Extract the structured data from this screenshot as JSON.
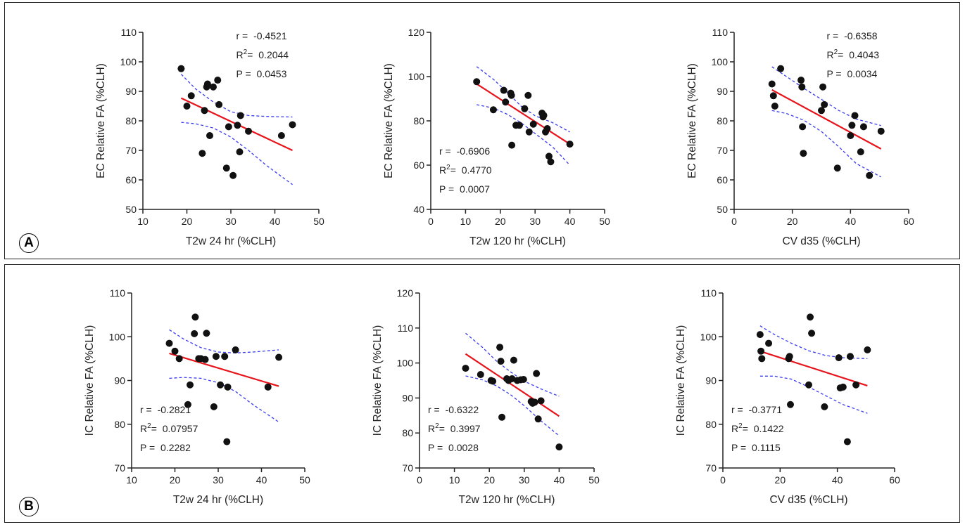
{
  "panels": [
    {
      "label": "A"
    },
    {
      "label": "B"
    }
  ],
  "colors": {
    "points": "#111111",
    "regression": "#e8141c",
    "ci": "#3a3cf0",
    "axis": "#222222"
  },
  "chart_data": [
    {
      "type": "scatter",
      "panel": "A",
      "xlabel": "T2w 24 hr (%CLH)",
      "ylabel": "EC Relative FA (%CLH)",
      "xlim": [
        10,
        50
      ],
      "ylim": [
        50,
        110
      ],
      "xticks": [
        "10",
        "20",
        "30",
        "40",
        "50"
      ],
      "yticks": [
        "50",
        "60",
        "70",
        "80",
        "90",
        "100",
        "110"
      ],
      "stats": {
        "r": "-0.4521",
        "r2": "0.2044",
        "p": "0.0453"
      },
      "stats_position": "top-right",
      "x": [
        18.7,
        20,
        21,
        23.5,
        24,
        24.5,
        24.7,
        25.2,
        26,
        27,
        27.3,
        29,
        29.5,
        30.5,
        31.5,
        32,
        32.2,
        34,
        41.5,
        44
      ],
      "y": [
        97.7,
        85,
        88.5,
        69,
        83.5,
        91.5,
        92.5,
        75,
        91.5,
        93.8,
        85.5,
        64,
        78,
        61.5,
        78.5,
        69.5,
        81.8,
        76.5,
        75,
        78.7
      ],
      "regression": {
        "x": [
          18.7,
          44
        ],
        "y": [
          87.7,
          70
        ]
      },
      "ci_upper": {
        "x": [
          18.7,
          22,
          26,
          30,
          34,
          38,
          44
        ],
        "y": [
          95.8,
          90.8,
          86.4,
          83.1,
          81.8,
          81.5,
          81.3
        ]
      },
      "ci_lower": {
        "x": [
          18.7,
          22,
          26,
          30,
          34,
          38,
          44
        ],
        "y": [
          79.5,
          79,
          77.6,
          74.5,
          70,
          65,
          58.4
        ]
      }
    },
    {
      "type": "scatter",
      "panel": "A",
      "xlabel": "T2w 120 hr (%CLH)",
      "ylabel": "EC Relative FA (%CLH)",
      "xlim": [
        0,
        50
      ],
      "ylim": [
        40,
        120
      ],
      "xticks": [
        "0",
        "10",
        "20",
        "30",
        "40",
        "50"
      ],
      "yticks": [
        "40",
        "60",
        "80",
        "100",
        "120"
      ],
      "stats": {
        "r": "-0.6906",
        "r2": "0.4770",
        "p": "0.0007"
      },
      "stats_position": "bottom-left",
      "x": [
        13.2,
        18,
        21,
        21.5,
        23,
        23.2,
        23.3,
        24.5,
        25.5,
        27,
        28,
        28.3,
        29.5,
        32,
        32.3,
        32.5,
        33,
        33.5,
        34,
        34.5,
        40
      ],
      "y": [
        97.7,
        85,
        93.8,
        88.5,
        92.5,
        91.5,
        69,
        78,
        78,
        85.5,
        91.5,
        75,
        78.5,
        83.5,
        81.8,
        82.5,
        75,
        76.5,
        64,
        61.5,
        69.5
      ],
      "regression": {
        "x": [
          13.2,
          40
        ],
        "y": [
          96.7,
          69.5
        ]
      },
      "ci_upper": {
        "x": [
          13.2,
          18,
          22,
          26,
          30,
          35,
          40
        ],
        "y": [
          104.5,
          98.8,
          92.9,
          86.6,
          82.3,
          79.2,
          75
        ]
      },
      "ci_lower": {
        "x": [
          13.2,
          18,
          22,
          26,
          30,
          35,
          40
        ],
        "y": [
          87.3,
          85.8,
          83,
          79.1,
          74.3,
          68.3,
          60
        ]
      }
    },
    {
      "type": "scatter",
      "panel": "A",
      "xlabel": "CV d35 (%CLH)",
      "ylabel": "EC Relative FA (%CLH)",
      "xlim": [
        0,
        60
      ],
      "ylim": [
        50,
        110
      ],
      "xticks": [
        "0",
        "20",
        "40",
        "60"
      ],
      "yticks": [
        "50",
        "60",
        "70",
        "80",
        "90",
        "100",
        "110"
      ],
      "stats": {
        "r": "-0.6358",
        "r2": "0.4043",
        "p": "0.0034"
      },
      "stats_position": "top-right",
      "x": [
        13,
        13.5,
        14,
        16,
        23,
        23.3,
        23.5,
        23.8,
        30,
        30.5,
        31,
        35.5,
        40,
        40.5,
        41.5,
        43.5,
        44.5,
        46.5,
        50.5
      ],
      "y": [
        92.5,
        88.5,
        85,
        97.7,
        93.8,
        91.5,
        78,
        69,
        83.5,
        91.5,
        85.5,
        64,
        75,
        78.5,
        81.8,
        69.5,
        78,
        61.5,
        76.5
      ],
      "regression": {
        "x": [
          13,
          50.5
        ],
        "y": [
          90.5,
          70.5
        ]
      },
      "ci_upper": {
        "x": [
          13,
          18,
          24,
          30,
          36,
          42,
          50.5
        ],
        "y": [
          98.3,
          95,
          91,
          87.3,
          83.5,
          80.6,
          78.4
        ]
      },
      "ci_lower": {
        "x": [
          13,
          18,
          24,
          30,
          36,
          42,
          50.5
        ],
        "y": [
          83.5,
          82.5,
          80.2,
          76.4,
          71.2,
          65.5,
          61
        ]
      }
    },
    {
      "type": "scatter",
      "panel": "B",
      "xlabel": "T2w 24 hr (%CLH)",
      "ylabel": "IC Relative FA (%CLH)",
      "xlim": [
        10,
        50
      ],
      "ylim": [
        70,
        110
      ],
      "xticks": [
        "10",
        "20",
        "30",
        "40",
        "50"
      ],
      "yticks": [
        "70",
        "80",
        "90",
        "100",
        "110"
      ],
      "stats": {
        "r": "-0.2821",
        "r2": "0.07957",
        "p": "0.2282"
      },
      "stats_position": "bottom-left",
      "x": [
        18.7,
        20,
        21,
        23,
        23.5,
        24.5,
        24.7,
        25.5,
        26,
        27,
        27.3,
        29,
        29.5,
        30.5,
        31.5,
        32,
        32.2,
        34,
        41.5,
        44
      ],
      "y": [
        98.5,
        96.7,
        95,
        84.5,
        89,
        100.7,
        104.5,
        95,
        95,
        94.8,
        100.8,
        84,
        95.5,
        89,
        95.5,
        76,
        88.5,
        97,
        88.5,
        95.3
      ],
      "regression": {
        "x": [
          18.7,
          44
        ],
        "y": [
          96.2,
          88.7
        ]
      },
      "ci_upper": {
        "x": [
          18.7,
          22,
          26,
          30,
          34,
          38,
          44
        ],
        "y": [
          101.6,
          99.5,
          97.5,
          96.5,
          96.3,
          96.5,
          97
        ]
      },
      "ci_lower": {
        "x": [
          18.7,
          22,
          26,
          30,
          34,
          38,
          44
        ],
        "y": [
          90.5,
          90.7,
          90.5,
          89.5,
          87.5,
          84.5,
          80.5
        ]
      }
    },
    {
      "type": "scatter",
      "panel": "B",
      "xlabel": "T2w 120 hr (%CLH)",
      "ylabel": "IC Relative FA (%CLH)",
      "xlim": [
        0,
        50
      ],
      "ylim": [
        70,
        120
      ],
      "xticks": [
        "0",
        "10",
        "20",
        "30",
        "40",
        "50"
      ],
      "yticks": [
        "70",
        "80",
        "90",
        "100",
        "110",
        "120"
      ],
      "stats": {
        "r": "-0.6322",
        "r2": "0.3997",
        "p": "0.0028"
      },
      "stats_position": "bottom-left",
      "x": [
        13.2,
        17.5,
        20.5,
        21,
        23,
        23.3,
        23.6,
        25,
        25.5,
        26.5,
        27,
        28,
        29,
        29.8,
        32,
        32.4,
        33,
        33.5,
        34,
        34.8,
        40
      ],
      "y": [
        98.5,
        96.7,
        95,
        94.8,
        104.5,
        100.5,
        84.5,
        95.5,
        95,
        95.5,
        100.8,
        95,
        95.2,
        95.3,
        89,
        88.5,
        88.8,
        97,
        84,
        89.2,
        76
      ],
      "regression": {
        "x": [
          13.2,
          40
        ],
        "y": [
          102.6,
          84.8
        ]
      },
      "ci_upper": {
        "x": [
          13.2,
          18,
          22,
          26,
          30,
          35,
          40
        ],
        "y": [
          108.5,
          104.5,
          100.6,
          97.5,
          94.8,
          92.5,
          90.5
        ]
      },
      "ci_lower": {
        "x": [
          13.2,
          18,
          22,
          26,
          30,
          35,
          40
        ],
        "y": [
          96.3,
          95.2,
          93.5,
          91,
          87.8,
          83.3,
          79.2
        ]
      }
    },
    {
      "type": "scatter",
      "panel": "B",
      "xlabel": "CV d35 (%CLH)",
      "ylabel": "IC Relative FA (%CLH)",
      "xlim": [
        0,
        60
      ],
      "ylim": [
        70,
        110
      ],
      "xticks": [
        "0",
        "20",
        "40",
        "60"
      ],
      "yticks": [
        "70",
        "80",
        "90",
        "100",
        "110"
      ],
      "stats": {
        "r": "-0.3771",
        "r2": "0.1422",
        "p": "0.1115"
      },
      "stats_position": "bottom-left",
      "x": [
        13,
        13.3,
        13.6,
        16,
        23,
        23.3,
        23.6,
        30,
        30.5,
        31,
        35.5,
        40.5,
        41,
        42,
        43.5,
        44.5,
        46.5,
        50.5
      ],
      "y": [
        100.5,
        96.7,
        95,
        98.5,
        95,
        95.5,
        84.5,
        89,
        104.5,
        100.8,
        84,
        95.2,
        88.3,
        88.5,
        76,
        95.5,
        89,
        97
      ],
      "regression": {
        "x": [
          13,
          50.5
        ],
        "y": [
          96.7,
          88.8
        ]
      },
      "ci_upper": {
        "x": [
          13,
          18,
          24,
          30,
          36,
          42,
          50.5
        ],
        "y": [
          102.5,
          100.5,
          98.5,
          96.8,
          95.7,
          95.2,
          95
        ]
      },
      "ci_lower": {
        "x": [
          13,
          18,
          24,
          30,
          36,
          42,
          50.5
        ],
        "y": [
          91,
          91,
          90.3,
          88.5,
          86.5,
          84.5,
          82.5
        ]
      }
    }
  ]
}
